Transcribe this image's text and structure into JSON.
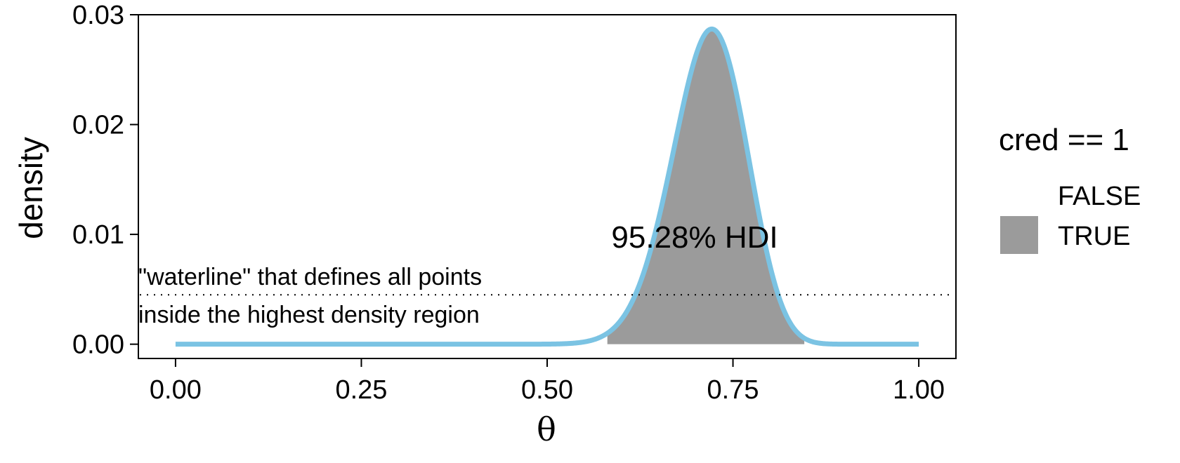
{
  "chart_data": {
    "type": "area",
    "xlabel": "θ",
    "ylabel": "density",
    "xlim": [
      -0.05,
      1.05
    ],
    "ylim": [
      -0.0013,
      0.03
    ],
    "xticks": [
      0.0,
      0.25,
      0.5,
      0.75,
      1.0
    ],
    "xtick_labels": [
      "0.00",
      "0.25",
      "0.50",
      "0.75",
      "1.00"
    ],
    "yticks": [
      0.0,
      0.01,
      0.02,
      0.03
    ],
    "ytick_labels": [
      "0.00",
      "0.01",
      "0.02",
      "0.03"
    ],
    "curve": {
      "description": "posterior density, Beta(58, 23)-shaped",
      "alpha": 58,
      "beta": 23,
      "grid_step": 0.001,
      "mode": 0.7215,
      "peak_density": 0.0287,
      "color": "#7BC3E3"
    },
    "hdi": {
      "lower": 0.581,
      "upper": 0.846,
      "waterline_density": 0.0045,
      "fill_color": "#9B9B9B",
      "label": "95.28% HDI"
    },
    "waterline_annotation": [
      "\"waterline\" that defines all points",
      "inside the highest density region"
    ],
    "legend": {
      "title": "cred == 1",
      "placement": "right",
      "entries": [
        {
          "label": "FALSE",
          "color": "none"
        },
        {
          "label": "TRUE",
          "color": "#9B9B9B"
        }
      ]
    },
    "grid": false
  }
}
